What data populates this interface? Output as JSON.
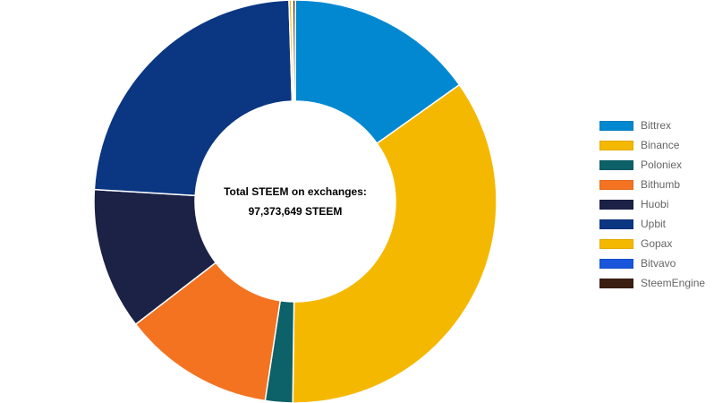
{
  "center": {
    "title": "Total STEEM on exchanges:",
    "value": "97,373,649 STEEM"
  },
  "chart_data": {
    "type": "pie",
    "categories": [
      "Bittrex",
      "Binance",
      "Poloniex",
      "Bithumb",
      "Huobi",
      "Upbit",
      "Gopax",
      "Bitvavo",
      "SteemEngine"
    ],
    "values": [
      15.2,
      35.1,
      2.2,
      12.2,
      11.4,
      23.6,
      0.2,
      0.1,
      0.2
    ],
    "colors": [
      "#0288d1",
      "#f5b800",
      "#0d6168",
      "#f37321",
      "#1c2146",
      "#0a3682",
      "#f5b800",
      "#1a56db",
      "#3a1f12"
    ],
    "legend_position": "right",
    "doughnut": true
  }
}
